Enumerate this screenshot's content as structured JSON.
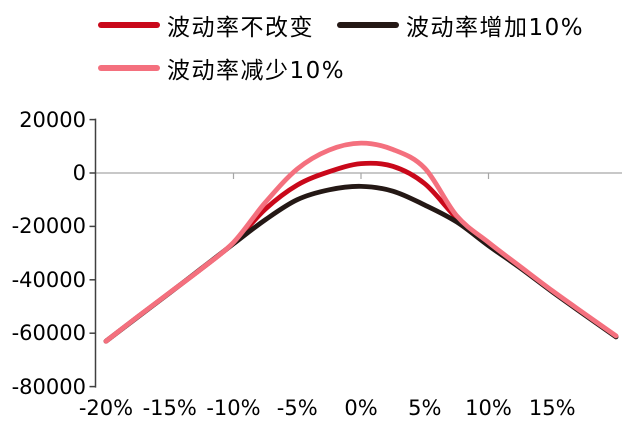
{
  "legend": {
    "items": [
      {
        "label": "波动率不改变",
        "color": "#C9081A"
      },
      {
        "label": "波动率增加10%",
        "color": "#241815"
      },
      {
        "label": "波动率减少10%",
        "color": "#F4707E"
      }
    ]
  },
  "chart_data": {
    "type": "line",
    "title": "",
    "xlabel": "",
    "ylabel": "",
    "x_unit": "percent",
    "x": [
      -20,
      -17.5,
      -15,
      -12.5,
      -10,
      -7.5,
      -5,
      -2.5,
      0,
      2.5,
      5,
      7.5,
      10,
      12.5,
      15,
      17.5,
      20
    ],
    "series": [
      {
        "name": "波动率不改变",
        "color": "#C9081A",
        "values": [
          -63000,
          -53800,
          -44800,
          -35800,
          -26200,
          -13500,
          -4500,
          500,
          3500,
          2500,
          -4000,
          -16800,
          -26400,
          -35300,
          -44300,
          -52800,
          -61200
        ]
      },
      {
        "name": "波动率增加10%",
        "color": "#241815",
        "values": [
          -63000,
          -53900,
          -44900,
          -35700,
          -26500,
          -17500,
          -10000,
          -6300,
          -5000,
          -6800,
          -12000,
          -18300,
          -27200,
          -35600,
          -44500,
          -53000,
          -61400
        ]
      },
      {
        "name": "波动率减少10%",
        "color": "#F4707E",
        "values": [
          -63000,
          -53800,
          -44800,
          -35800,
          -26000,
          -11000,
          1500,
          8600,
          11200,
          8800,
          1800,
          -16000,
          -26000,
          -35100,
          -44100,
          -52600,
          -61000
        ]
      }
    ],
    "y_ticks": [
      20000,
      0,
      -20000,
      -40000,
      -60000,
      -80000
    ],
    "y_tick_labels": [
      "20000",
      "0",
      "-20000",
      "-40000",
      "-60000",
      "-80000"
    ],
    "x_tick_values": [
      -20,
      -15,
      -10,
      -5,
      0,
      5,
      10,
      15
    ],
    "x_tick_labels": [
      "-20%",
      "-15%",
      "-10%",
      "-5%",
      "0%",
      "5%",
      "10%",
      "15%"
    ],
    "x_axis_tick_marks": [
      -10,
      0,
      10
    ],
    "ylim": [
      -80000,
      20000
    ],
    "xlim": [
      -21,
      20.5
    ],
    "grid": "zero-line-only",
    "zero_line_color": "#A6A6A6",
    "axis_color": "#404040",
    "legend_position": "top-left"
  }
}
